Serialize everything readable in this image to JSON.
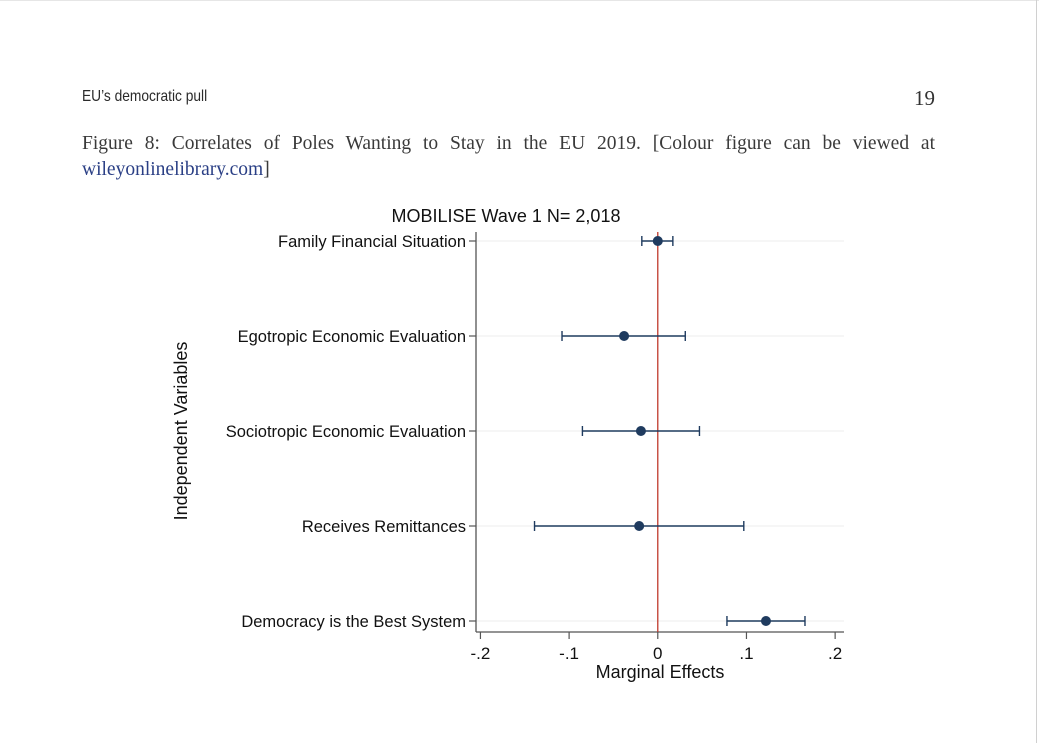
{
  "header": {
    "running_title": "EU’s democratic pull",
    "page_number": "19"
  },
  "caption": {
    "text": "Figure 8: Correlates of Poles Wanting to Stay in the EU 2019. [Colour figure can be viewed at ",
    "link_text": "wileyonlinelibrary.com",
    "closing": "]"
  },
  "colors": {
    "point": "#1f3b5f",
    "zero_line": "#c0392b",
    "axis": "#555555",
    "grid": "#ececec"
  },
  "chart_data": {
    "type": "scatter",
    "subtype": "coefficient-plot",
    "title": "MOBILISE Wave 1 N= 2,018",
    "xlabel": "Marginal Effects",
    "ylabel": "Independent Variables",
    "xlim": [
      -0.205,
      0.21
    ],
    "xticks": [
      -0.2,
      -0.1,
      0,
      0.1,
      0.2
    ],
    "xtick_labels": [
      "-.2",
      "-.1",
      "0",
      ".1",
      ".2"
    ],
    "reference_line": 0,
    "grid": true,
    "variables": [
      {
        "label": "Family Financial Situation",
        "estimate": 0.0,
        "ci_low": -0.018,
        "ci_high": 0.017
      },
      {
        "label": "Egotropic Economic Evaluation",
        "estimate": -0.038,
        "ci_low": -0.108,
        "ci_high": 0.031
      },
      {
        "label": "Sociotropic Economic Evaluation",
        "estimate": -0.019,
        "ci_low": -0.085,
        "ci_high": 0.047
      },
      {
        "label": "Receives Remittances",
        "estimate": -0.021,
        "ci_low": -0.139,
        "ci_high": 0.097
      },
      {
        "label": "Democracy is the Best System",
        "estimate": 0.122,
        "ci_low": 0.078,
        "ci_high": 0.166
      }
    ]
  }
}
